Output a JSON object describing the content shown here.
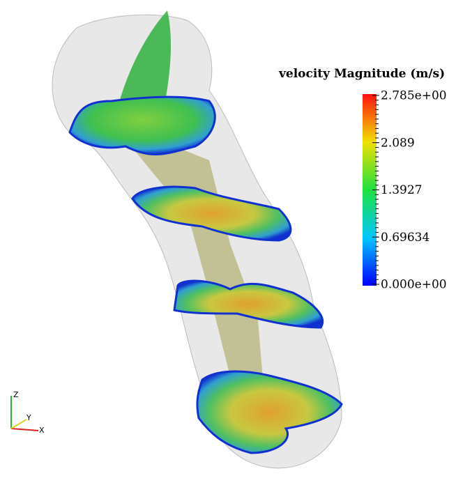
{
  "legend": {
    "title": "velocity Magnitude (m/s)",
    "labels": [
      "2.785e+00",
      "2.089",
      "1.3927",
      "0.69634",
      "0.000e+00"
    ]
  },
  "axes": {
    "z": "Z",
    "y": "Y",
    "x": "X"
  }
}
